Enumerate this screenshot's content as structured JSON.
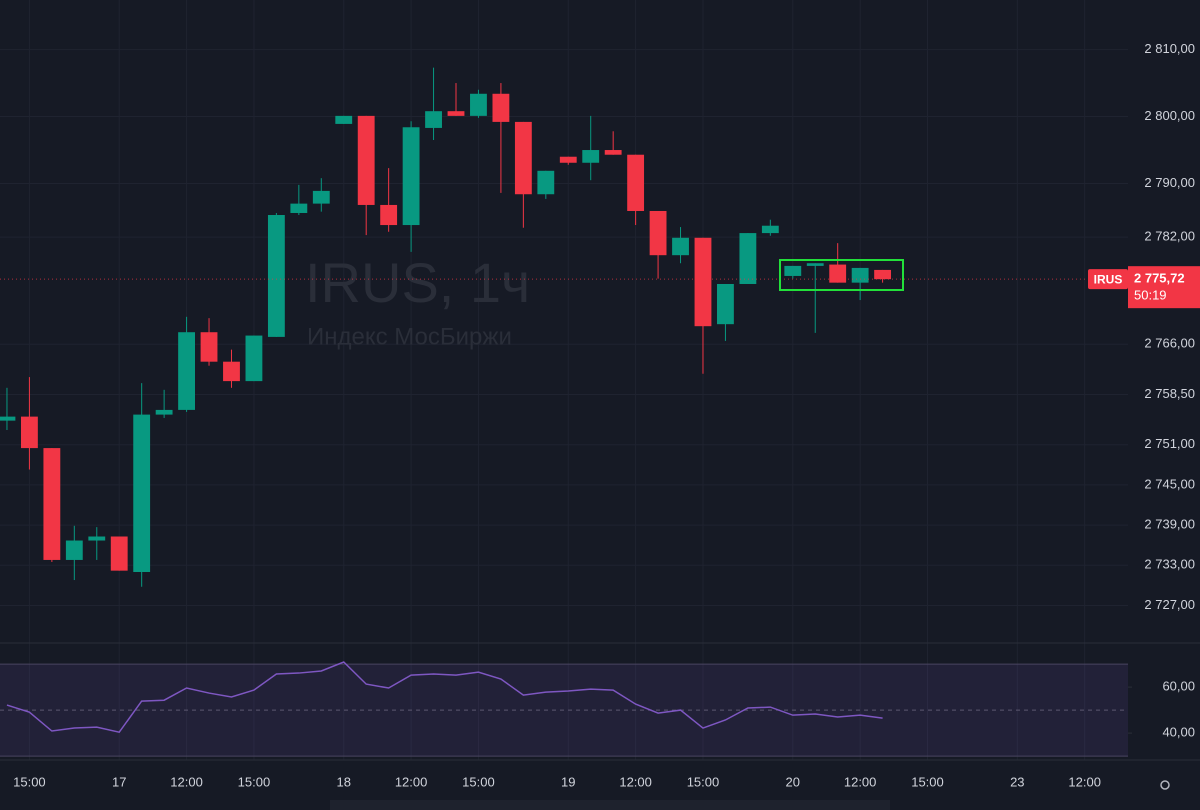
{
  "chart_data": [
    {
      "type": "candlestick",
      "title": "IRUS, 1ч",
      "subtitle": "Индекс МосБиржи",
      "up_color": "#089981",
      "down_color": "#f23645",
      "open": [
        2754.6,
        2755.2,
        2750.5,
        2733.8,
        2736.7,
        2737.3,
        2732.0,
        2755.5,
        2756.2,
        2767.8,
        2763.4,
        2760.5,
        2767.1,
        2785.6,
        2787.0,
        2798.9,
        2800.1,
        2786.8,
        2783.8,
        2798.3,
        2800.8,
        2800.1,
        2803.4,
        2799.2,
        2788.4,
        2794.0,
        2793.1,
        2795.0,
        2794.3,
        2785.9,
        2779.3,
        2781.9,
        2769.0,
        2775.0,
        2782.6,
        2776.2,
        2777.7,
        2777.9,
        2775.2,
        2777.1
      ],
      "high": [
        2759.5,
        2761.1,
        2750.5,
        2738.9,
        2738.7,
        2737.3,
        2760.2,
        2759.2,
        2770.1,
        2769.9,
        2765.2,
        2767.3,
        2785.6,
        2789.8,
        2790.8,
        2800.1,
        2800.1,
        2792.3,
        2799.3,
        2807.3,
        2805.0,
        2804.0,
        2805.0,
        2799.2,
        2791.9,
        2794.0,
        2800.1,
        2797.8,
        2794.3,
        2785.9,
        2783.5,
        2781.9,
        2775.0,
        2782.6,
        2784.6,
        2777.7,
        2778.1,
        2781.1,
        2777.4,
        2777.1
      ],
      "low": [
        2753.2,
        2747.3,
        2733.5,
        2730.8,
        2733.8,
        2732.2,
        2729.8,
        2755.0,
        2755.9,
        2762.8,
        2759.5,
        2760.5,
        2767.1,
        2785.3,
        2785.8,
        2798.9,
        2782.3,
        2782.8,
        2779.8,
        2796.5,
        2800.1,
        2799.8,
        2788.6,
        2783.4,
        2787.7,
        2792.8,
        2790.5,
        2794.3,
        2783.8,
        2775.8,
        2778.1,
        2761.6,
        2766.5,
        2775.0,
        2782.2,
        2775.8,
        2767.7,
        2775.2,
        2772.6,
        2775.2
      ],
      "close": [
        2755.2,
        2750.5,
        2733.8,
        2736.7,
        2737.3,
        2732.2,
        2755.5,
        2756.2,
        2767.8,
        2763.4,
        2760.5,
        2767.3,
        2785.3,
        2787.0,
        2788.9,
        2800.1,
        2786.8,
        2783.8,
        2798.4,
        2800.8,
        2800.1,
        2803.4,
        2799.2,
        2788.4,
        2791.9,
        2793.1,
        2795.0,
        2794.3,
        2785.9,
        2779.3,
        2781.9,
        2768.7,
        2775.0,
        2782.6,
        2783.7,
        2777.7,
        2778.1,
        2775.2,
        2777.4,
        2775.72
      ],
      "ylim": [
        2721.4,
        2817.4
      ],
      "yticks": [
        {
          "value": 2810,
          "label": "2 810,00"
        },
        {
          "value": 2800,
          "label": "2 800,00"
        },
        {
          "value": 2790,
          "label": "2 790,00"
        },
        {
          "value": 2782,
          "label": "2 782,00"
        },
        {
          "value": 2766,
          "label": "2 766,00"
        },
        {
          "value": 2758.5,
          "label": "2 758,50"
        },
        {
          "value": 2751,
          "label": "2 751,00"
        },
        {
          "value": 2745,
          "label": "2 745,00"
        },
        {
          "value": 2739,
          "label": "2 739,00"
        },
        {
          "value": 2733,
          "label": "2 733,00"
        },
        {
          "value": 2727,
          "label": "2 727,00"
        }
      ],
      "xlim": [
        -0.31,
        49.93
      ],
      "xticks": [
        {
          "value": 1,
          "label": "15:00"
        },
        {
          "value": 5,
          "label": "17"
        },
        {
          "value": 8,
          "label": "12:00"
        },
        {
          "value": 11,
          "label": "15:00"
        },
        {
          "value": 15,
          "label": "18"
        },
        {
          "value": 18,
          "label": "12:00"
        },
        {
          "value": 21,
          "label": "15:00"
        },
        {
          "value": 25,
          "label": "19"
        },
        {
          "value": 28,
          "label": "12:00"
        },
        {
          "value": 31,
          "label": "15:00"
        },
        {
          "value": 35,
          "label": "20"
        },
        {
          "value": 38,
          "label": "12:00"
        },
        {
          "value": 41,
          "label": "15:00"
        },
        {
          "value": 45,
          "label": "23"
        },
        {
          "value": 48,
          "label": "12:00"
        }
      ],
      "last_price": {
        "symbol": "IRUS",
        "value": 2775.72,
        "label": "2 775,72",
        "countdown": "50:19"
      }
    },
    {
      "type": "line",
      "color": "#7e57c2",
      "values": [
        52.2,
        49.1,
        40.9,
        42.2,
        42.6,
        40.4,
        53.9,
        54.3,
        59.6,
        57.4,
        55.7,
        58.7,
        65.7,
        66.1,
        67.0,
        70.9,
        61.3,
        59.6,
        65.2,
        65.7,
        65.2,
        66.5,
        63.5,
        56.5,
        57.8,
        58.3,
        59.1,
        58.7,
        52.6,
        48.7,
        50.0,
        42.2,
        45.7,
        50.9,
        51.3,
        47.8,
        48.3,
        47.0,
        47.8,
        46.5
      ],
      "ylim": [
        28.3,
        78.3
      ],
      "yticks": [
        {
          "value": 60,
          "label": "60,00"
        },
        {
          "value": 40,
          "label": "40,00"
        }
      ],
      "band": [
        30,
        70
      ],
      "midline": 50
    }
  ]
}
